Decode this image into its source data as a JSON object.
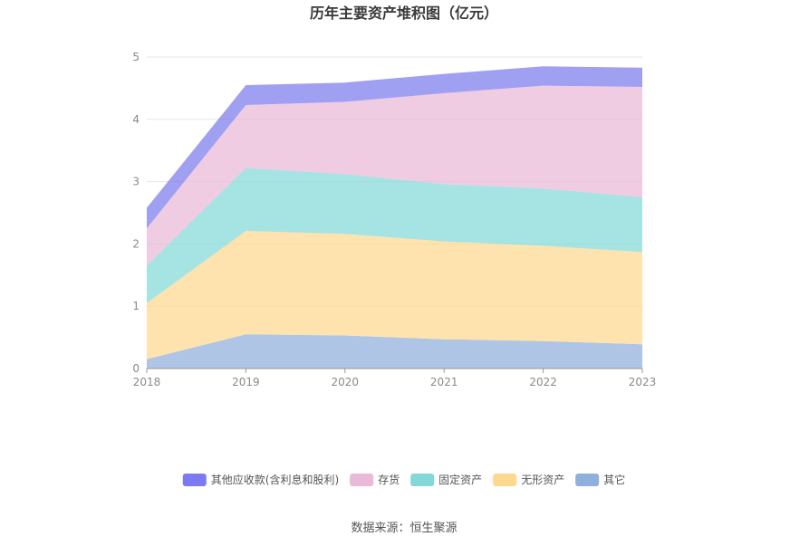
{
  "chart_data": {
    "type": "area",
    "stacked": true,
    "title": "历年主要资产堆积图（亿元）",
    "xlabel": "",
    "ylabel": "",
    "x": [
      "2018",
      "2019",
      "2020",
      "2021",
      "2022",
      "2023"
    ],
    "ylim": [
      0,
      5
    ],
    "yticks": [
      "0",
      "1",
      "2",
      "3",
      "4",
      "5"
    ],
    "grid": true,
    "legend_position": "bottom",
    "series": [
      {
        "name": "其它",
        "color": "#8fafdc",
        "values": [
          0.15,
          0.55,
          0.53,
          0.47,
          0.44,
          0.39
        ]
      },
      {
        "name": "无形资产",
        "color": "#fdd88f",
        "values": [
          0.9,
          1.66,
          1.63,
          1.57,
          1.53,
          1.48
        ]
      },
      {
        "name": "固定资产",
        "color": "#84d8d8",
        "values": [
          0.6,
          1.01,
          0.96,
          0.92,
          0.92,
          0.88
        ]
      },
      {
        "name": "存货",
        "color": "#eab8d8",
        "values": [
          0.6,
          1.01,
          1.16,
          1.46,
          1.65,
          1.77
        ]
      },
      {
        "name": "其他应收款(含利息和股利)",
        "color": "#7b7bef",
        "values": [
          0.33,
          0.32,
          0.31,
          0.31,
          0.31,
          0.31
        ]
      }
    ]
  },
  "source": "数据来源：恒生聚源"
}
